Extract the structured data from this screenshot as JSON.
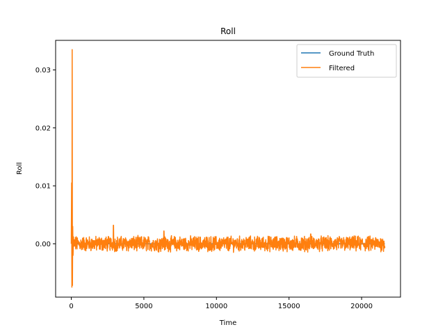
{
  "chart_data": {
    "type": "line",
    "title": "Roll",
    "xlabel": "Time",
    "ylabel": "Roll",
    "xlim": [
      -1080,
      22680
    ],
    "ylim": [
      -0.0092,
      0.0351
    ],
    "xticks": [
      0,
      5000,
      10000,
      15000,
      20000
    ],
    "xtick_labels": [
      "0",
      "5000",
      "10000",
      "15000",
      "20000"
    ],
    "yticks": [
      0.0,
      0.01,
      0.02,
      0.03
    ],
    "ytick_labels": [
      "0.00",
      "0.01",
      "0.02",
      "0.03"
    ],
    "grid": false,
    "legend_position": "top-right",
    "series": [
      {
        "name": "Ground Truth",
        "color": "#1f77b4",
        "x": [
          0,
          21600
        ],
        "y": [
          0.0,
          0.0
        ]
      },
      {
        "name": "Filtered",
        "color": "#ff7f0e",
        "x": [
          0,
          20,
          40,
          60,
          80,
          100,
          120,
          150,
          200,
          400,
          800,
          1500,
          2000,
          2500,
          2900,
          2950,
          3000,
          3500,
          4500,
          5500,
          6400,
          6500,
          6600,
          7500,
          8500,
          9500,
          10500,
          11500,
          12500,
          13500,
          14500,
          15500,
          16500,
          16800,
          17000,
          18000,
          19000,
          20000,
          20500,
          21000,
          21600
        ],
        "y": [
          0.0,
          0.0105,
          -0.0075,
          0.0335,
          -0.0072,
          0.003,
          -0.002,
          0.0012,
          -0.0006,
          0.0008,
          -0.0007,
          0.0009,
          -0.0005,
          0.0011,
          0.0032,
          -0.0004,
          0.0008,
          -0.0009,
          0.0012,
          -0.0008,
          0.0022,
          -0.0006,
          0.001,
          -0.0008,
          0.0011,
          -0.0009,
          0.0008,
          -0.0011,
          0.001,
          -0.0008,
          0.0011,
          -0.0009,
          0.0017,
          -0.0007,
          0.0011,
          -0.0009,
          0.0008,
          -0.001,
          0.0012,
          -0.0008,
          0.0004
        ]
      }
    ]
  }
}
